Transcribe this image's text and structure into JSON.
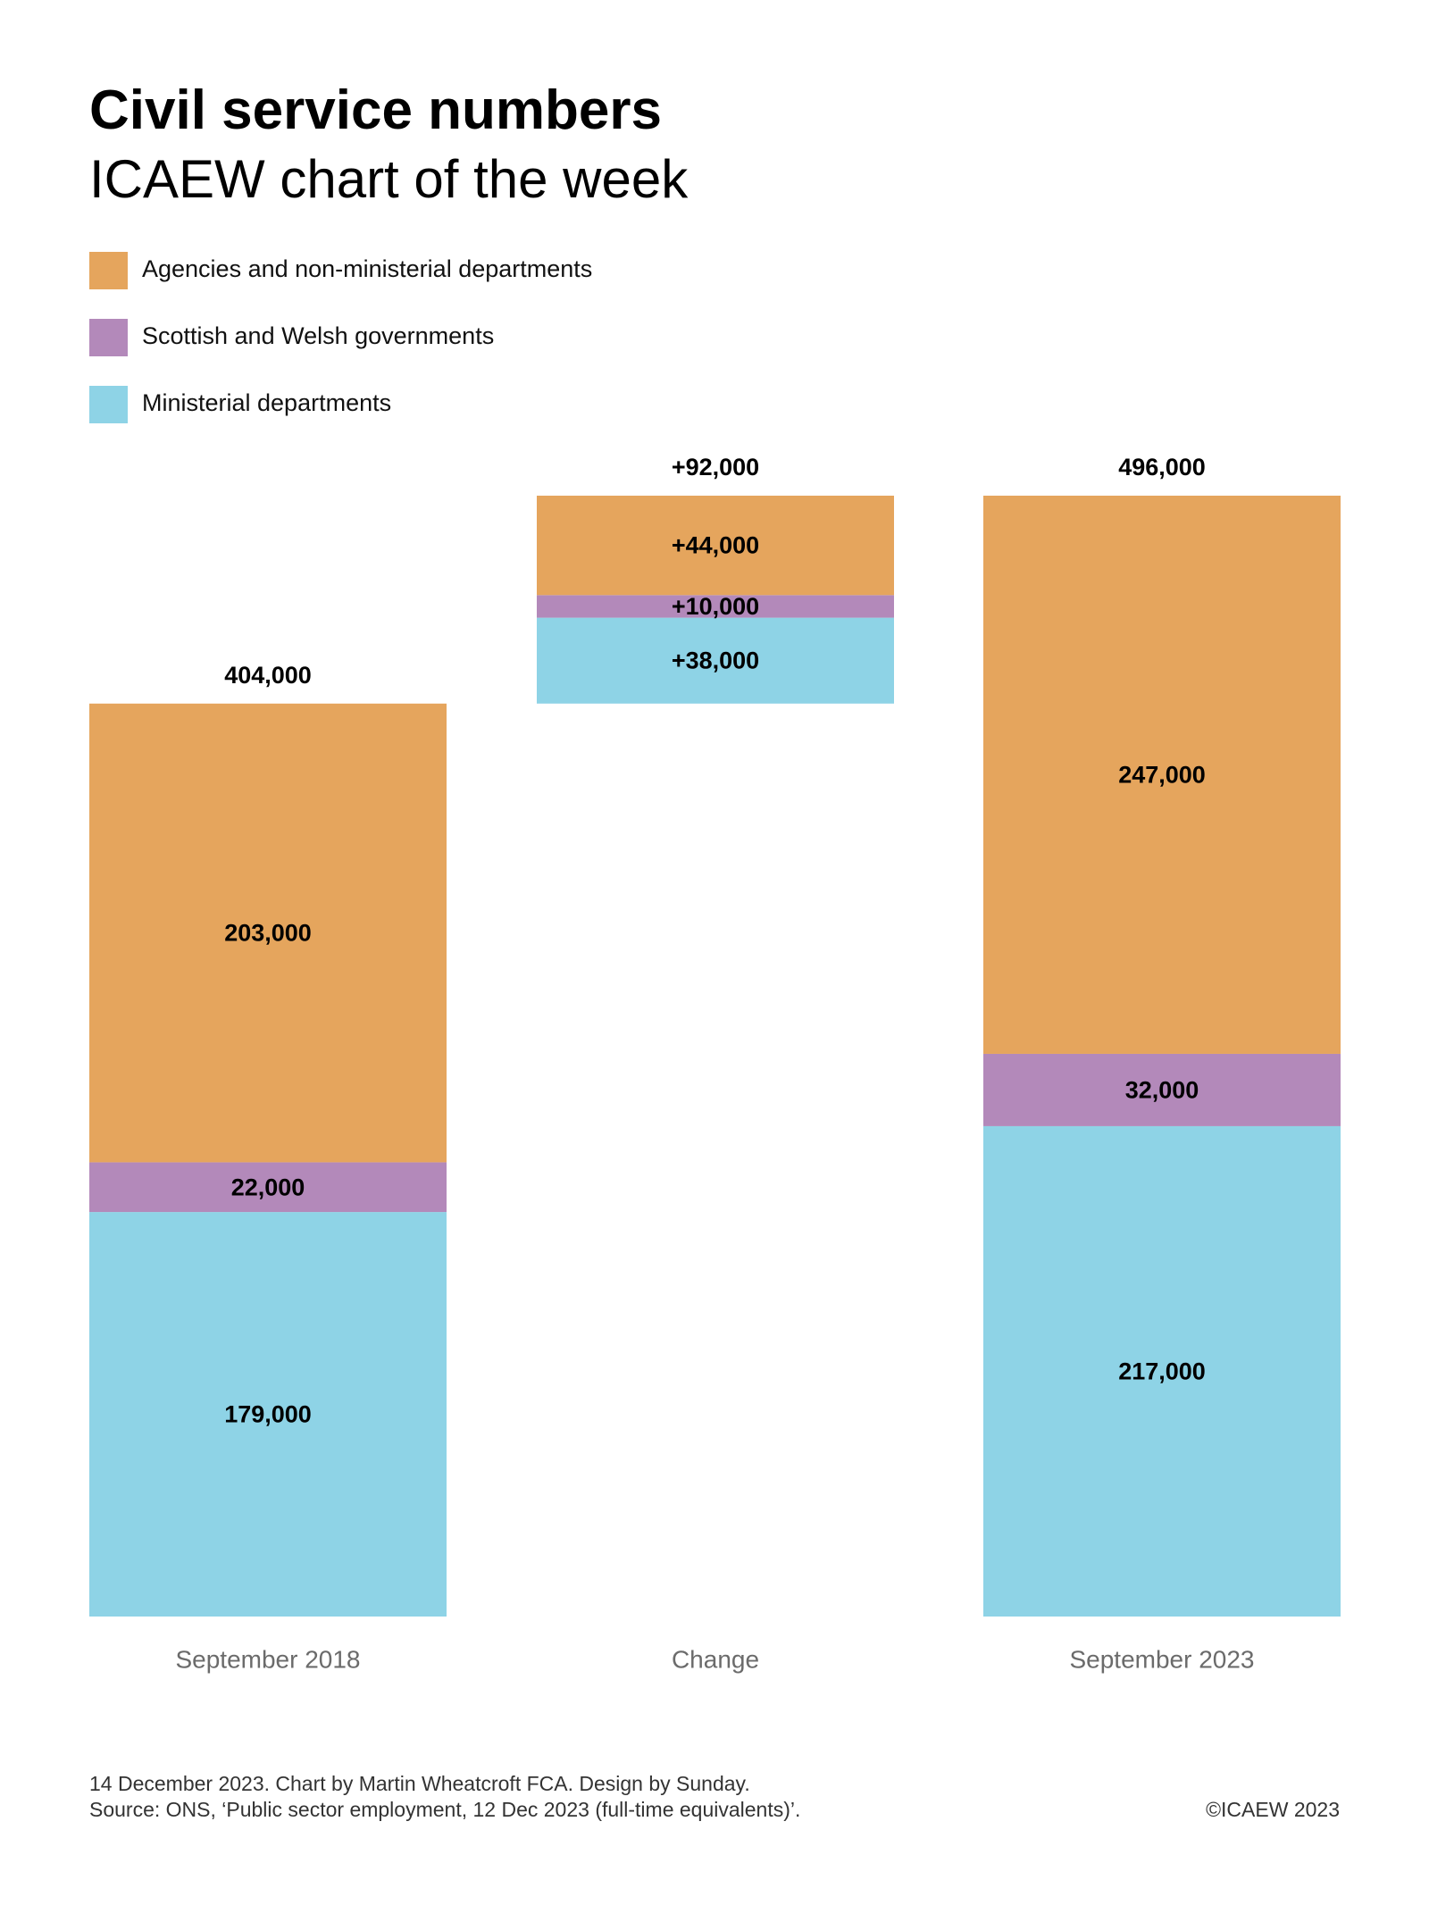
{
  "header": {
    "title": "Civil service numbers",
    "subtitle": "ICAEW chart of the week"
  },
  "legend": [
    {
      "label": "Agencies and non-ministerial departments",
      "color": "#E5A55D"
    },
    {
      "label": "Scottish and Welsh governments",
      "color": "#B389BA"
    },
    {
      "label": "Ministerial departments",
      "color": "#8ED3E6"
    }
  ],
  "chart_data": {
    "type": "bar",
    "stacked": true,
    "waterfall": true,
    "title": "Civil service numbers",
    "categories": [
      "September 2018",
      "Change",
      "September 2023"
    ],
    "series": [
      {
        "name": "Ministerial departments",
        "color": "#8ED3E6",
        "values": [
          179000,
          38000,
          217000
        ],
        "labels": [
          "179,000",
          "+38,000",
          "217,000"
        ]
      },
      {
        "name": "Scottish and Welsh governments",
        "color": "#B389BA",
        "values": [
          22000,
          10000,
          32000
        ],
        "labels": [
          "22,000",
          "+10,000",
          "32,000"
        ]
      },
      {
        "name": "Agencies and non-ministerial departments",
        "color": "#E5A55D",
        "values": [
          203000,
          44000,
          247000
        ],
        "labels": [
          "203,000",
          "+44,000",
          "247,000"
        ]
      }
    ],
    "totals": [
      404000,
      92000,
      496000
    ],
    "total_labels": [
      "404,000",
      "+92,000",
      "496,000"
    ],
    "bar_offsets": [
      0,
      404000,
      0
    ],
    "ylim": [
      0,
      496000
    ],
    "grid": false,
    "xlabel": "",
    "ylabel": "",
    "legend_position": "top-left"
  },
  "footer": {
    "line1": "14 December 2023.   Chart by Martin Wheatcroft FCA. Design by Sunday.",
    "line2": "Source: ONS, ‘Public sector employment, 12 Dec 2023 (full-time equivalents)’.",
    "copyright": "©ICAEW 2023"
  }
}
